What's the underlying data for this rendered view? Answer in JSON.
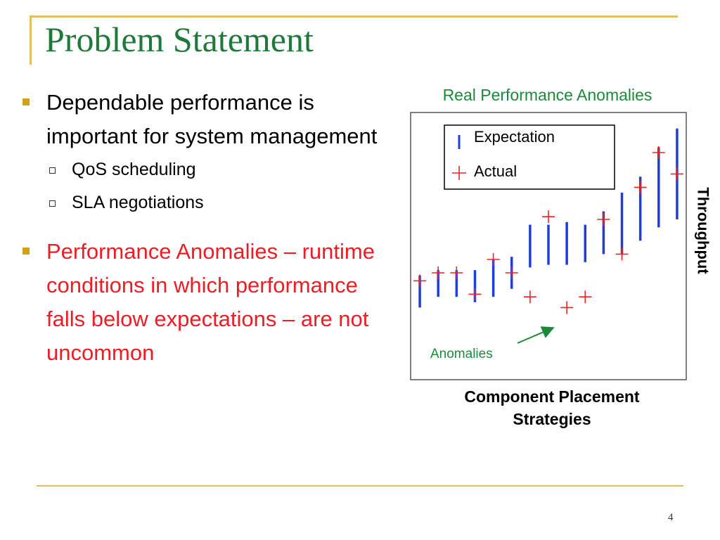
{
  "slide": {
    "title": "Problem Statement",
    "page_number": "4"
  },
  "bullets": [
    {
      "text": "Dependable performance is important for system management",
      "color": "#000000",
      "sub": [
        "QoS scheduling",
        "SLA negotiations"
      ]
    },
    {
      "text": "Performance Anomalies – runtime conditions in which performance falls below expectations – are not uncommon",
      "color": "#ee1c25",
      "sub": []
    }
  ],
  "chart_data": {
    "type": "scatter",
    "title": "Real Performance Anomalies",
    "xlabel": "Component Placement Strategies",
    "ylabel": "Throughput",
    "xlim": [
      0,
      15
    ],
    "ylim": [
      0,
      100
    ],
    "ticks": "none",
    "grid": false,
    "legend": {
      "placement": "top-right",
      "entries": [
        "Expectation",
        "Actual"
      ]
    },
    "series": [
      {
        "name": "Expectation",
        "kind": "interval",
        "color": "#1f3fd6",
        "x": [
          0.5,
          1.5,
          2.5,
          3.5,
          4.5,
          5.5,
          6.5,
          7.5,
          8.5,
          9.5,
          10.5,
          11.5,
          12.5,
          13.5,
          14.5
        ],
        "low": [
          27,
          31,
          31,
          29,
          31,
          34,
          42,
          43,
          43,
          44,
          47,
          47,
          52,
          57,
          60
        ],
        "high": [
          39,
          41,
          41,
          41,
          45,
          46,
          58,
          58,
          59,
          58,
          63,
          70,
          76,
          87,
          94
        ]
      },
      {
        "name": "Actual",
        "kind": "point",
        "color": "#ee2222",
        "x": [
          0.5,
          1.5,
          2.5,
          3.5,
          4.5,
          5.5,
          6.5,
          7.5,
          8.5,
          9.5,
          10.5,
          11.5,
          12.5,
          13.5,
          14.5
        ],
        "y": [
          37,
          40,
          40,
          32,
          45,
          40,
          31,
          61,
          27,
          31,
          60,
          47,
          72,
          85,
          77
        ]
      }
    ],
    "annotations": [
      {
        "text": "Anomalies",
        "color": "#1a8a3a"
      }
    ]
  }
}
